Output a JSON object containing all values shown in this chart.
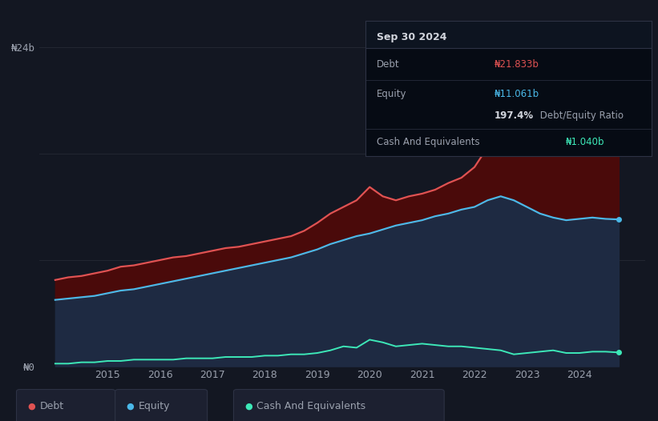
{
  "background_color": "#131722",
  "plot_bg_color": "#131722",
  "years": [
    2014.0,
    2014.25,
    2014.5,
    2014.75,
    2015.0,
    2015.25,
    2015.5,
    2015.75,
    2016.0,
    2016.25,
    2016.5,
    2016.75,
    2017.0,
    2017.25,
    2017.5,
    2017.75,
    2018.0,
    2018.25,
    2018.5,
    2018.75,
    2019.0,
    2019.25,
    2019.5,
    2019.75,
    2020.0,
    2020.25,
    2020.5,
    2020.75,
    2021.0,
    2021.25,
    2021.5,
    2021.75,
    2022.0,
    2022.25,
    2022.5,
    2022.75,
    2023.0,
    2023.25,
    2023.5,
    2023.75,
    2024.0,
    2024.25,
    2024.5,
    2024.75
  ],
  "debt": [
    6.5,
    6.7,
    6.8,
    7.0,
    7.2,
    7.5,
    7.6,
    7.8,
    8.0,
    8.2,
    8.3,
    8.5,
    8.7,
    8.9,
    9.0,
    9.2,
    9.4,
    9.6,
    9.8,
    10.2,
    10.8,
    11.5,
    12.0,
    12.5,
    13.5,
    12.8,
    12.5,
    12.8,
    13.0,
    13.3,
    13.8,
    14.2,
    15.0,
    16.5,
    17.5,
    18.0,
    19.5,
    21.0,
    22.0,
    22.5,
    22.8,
    23.0,
    21.5,
    21.833
  ],
  "equity": [
    5.0,
    5.1,
    5.2,
    5.3,
    5.5,
    5.7,
    5.8,
    6.0,
    6.2,
    6.4,
    6.6,
    6.8,
    7.0,
    7.2,
    7.4,
    7.6,
    7.8,
    8.0,
    8.2,
    8.5,
    8.8,
    9.2,
    9.5,
    9.8,
    10.0,
    10.3,
    10.6,
    10.8,
    11.0,
    11.3,
    11.5,
    11.8,
    12.0,
    12.5,
    12.8,
    12.5,
    12.0,
    11.5,
    11.2,
    11.0,
    11.1,
    11.2,
    11.1,
    11.061
  ],
  "cash": [
    0.2,
    0.2,
    0.3,
    0.3,
    0.4,
    0.4,
    0.5,
    0.5,
    0.5,
    0.5,
    0.6,
    0.6,
    0.6,
    0.7,
    0.7,
    0.7,
    0.8,
    0.8,
    0.9,
    0.9,
    1.0,
    1.2,
    1.5,
    1.4,
    2.0,
    1.8,
    1.5,
    1.6,
    1.7,
    1.6,
    1.5,
    1.5,
    1.4,
    1.3,
    1.2,
    0.9,
    1.0,
    1.1,
    1.2,
    1.0,
    1.0,
    1.1,
    1.1,
    1.04
  ],
  "debt_color": "#e05252",
  "equity_color": "#4ab8e8",
  "cash_color": "#3de8b8",
  "debt_fill_color": "#4a0a0a",
  "equity_fill_color": "#1e2a42",
  "ylim": [
    0,
    26
  ],
  "grid_color": "#252a35",
  "text_color": "#9aa0ad",
  "legend_bg": "#1c2030",
  "legend_edge": "#2d3244",
  "tooltip_bg": "#060b14",
  "tooltip_border": "#2d3244",
  "tooltip_title_color": "#d1d4dc",
  "tooltip_debt_color": "#e05252",
  "tooltip_equity_color": "#4ab8e8",
  "tooltip_ratio_color": "#d1d4dc",
  "tooltip_cash_color": "#3de8b8",
  "currency_symbol": "₦",
  "xtick_years": [
    2015,
    2016,
    2017,
    2018,
    2019,
    2020,
    2021,
    2022,
    2023,
    2024
  ]
}
